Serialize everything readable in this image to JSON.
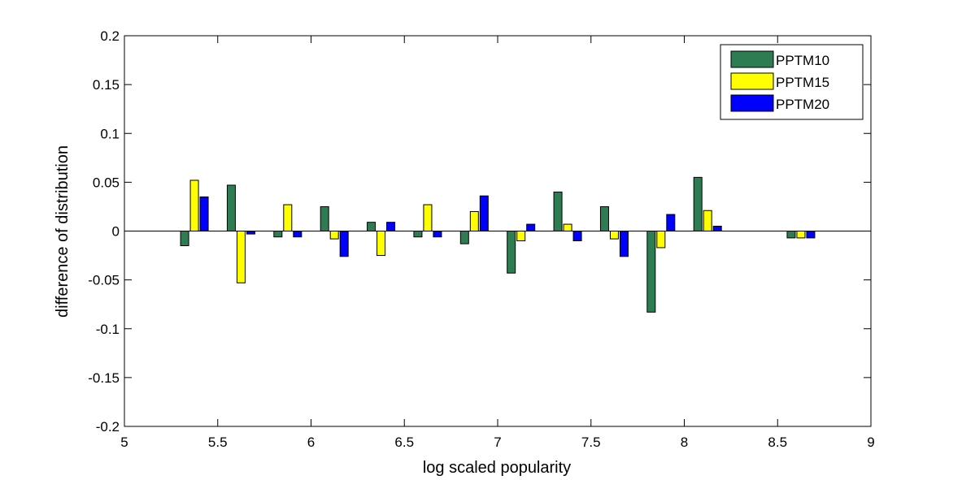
{
  "chart_data": {
    "type": "bar",
    "xlabel": "log scaled popularity",
    "ylabel": "difference of distribution",
    "xlim": [
      5,
      9
    ],
    "ylim": [
      -0.2,
      0.2
    ],
    "xticks": [
      "5",
      "5.5",
      "6",
      "6.5",
      "7",
      "7.5",
      "8",
      "8.5",
      "9"
    ],
    "yticks": [
      "0.2",
      "0.15",
      "0.1",
      "0.05",
      "0",
      "-0.05",
      "-0.1",
      "-0.15",
      "-0.2"
    ],
    "categories": [
      5.375,
      5.625,
      5.875,
      6.125,
      6.375,
      6.625,
      6.875,
      7.125,
      7.375,
      7.625,
      7.875,
      8.125,
      8.625
    ],
    "series": [
      {
        "name": "PPTM10",
        "color": "#2e7d52",
        "values": [
          -0.015,
          0.047,
          -0.006,
          0.025,
          0.009,
          -0.006,
          -0.013,
          -0.043,
          0.04,
          0.025,
          -0.083,
          0.055,
          -0.007
        ]
      },
      {
        "name": "PPTM15",
        "color": "#ffff00",
        "values": [
          0.052,
          -0.053,
          0.027,
          -0.008,
          -0.025,
          0.027,
          0.02,
          -0.01,
          0.007,
          -0.008,
          -0.017,
          0.021,
          -0.007
        ]
      },
      {
        "name": "PPTM20",
        "color": "#0000ff",
        "values": [
          0.035,
          -0.003,
          -0.006,
          -0.026,
          0.009,
          -0.006,
          0.036,
          0.007,
          -0.01,
          -0.026,
          0.017,
          0.005,
          -0.007
        ]
      }
    ],
    "grid": false,
    "legend_position": "top-right"
  }
}
